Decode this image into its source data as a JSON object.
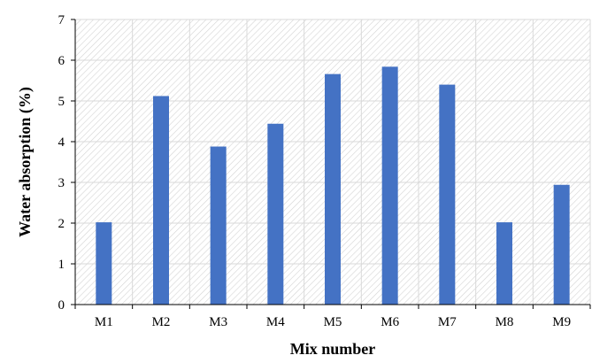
{
  "chart_data": {
    "type": "bar",
    "categories": [
      "M1",
      "M2",
      "M3",
      "M4",
      "M5",
      "M6",
      "M7",
      "M8",
      "M9"
    ],
    "series": [
      {
        "values": [
          2.02,
          5.12,
          3.88,
          4.44,
          5.66,
          5.84,
          5.4,
          2.02,
          2.94
        ]
      }
    ],
    "xlabel": "Mix number",
    "ylabel": "Water absorption (%)",
    "ylim": [
      0,
      7
    ],
    "yticks": [
      0,
      1,
      2,
      3,
      4,
      5,
      6,
      7
    ],
    "grid": true,
    "legend": "none",
    "bar_color": "#4472C4",
    "background_pattern": "diagonal-hatch"
  }
}
